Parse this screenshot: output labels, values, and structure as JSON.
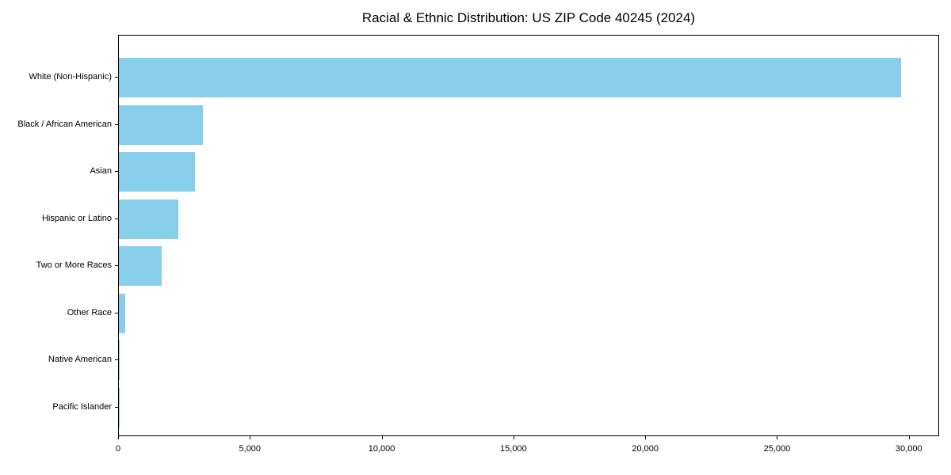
{
  "chart_data": {
    "type": "bar",
    "orientation": "horizontal",
    "title": "Racial & Ethnic Distribution: US ZIP Code 40245 (2024)",
    "categories": [
      "White (Non-Hispanic)",
      "Black / African American",
      "Asian",
      "Hispanic or Latino",
      "Two or More Races",
      "Other Race",
      "Native American",
      "Pacific Islander"
    ],
    "values": [
      29670,
      3180,
      2900,
      2270,
      1620,
      230,
      45,
      15
    ],
    "xlabel": "",
    "ylabel": "",
    "xlim": [
      0,
      31150
    ],
    "x_ticks": [
      0,
      5000,
      10000,
      15000,
      20000,
      25000,
      30000
    ],
    "x_tick_labels": [
      "0",
      "5,000",
      "10,000",
      "15,000",
      "20,000",
      "25,000",
      "30,000"
    ],
    "bar_color": "#87CEEB",
    "axis_color": "#000000",
    "background_color": "#ffffff",
    "grid": false,
    "legend_position": "none"
  }
}
